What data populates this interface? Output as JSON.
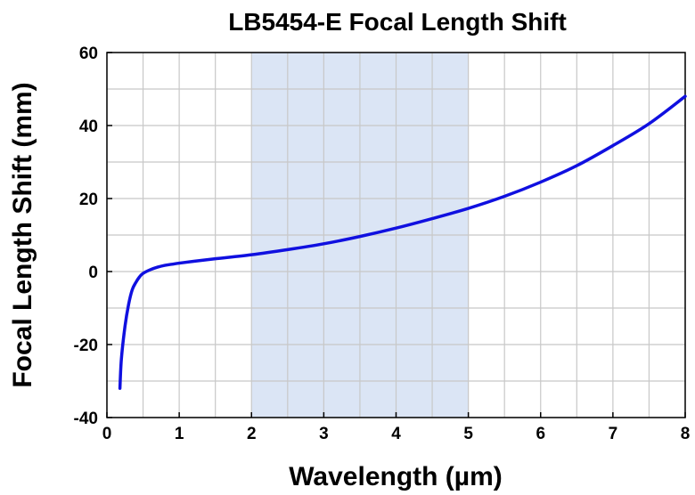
{
  "chart_data": {
    "type": "line",
    "title": "LB5454-E Focal Length Shift",
    "xlabel": "Wavelength (µm)",
    "ylabel": "Focal Length Shift (mm)",
    "xlim": [
      0,
      8
    ],
    "ylim": [
      -40,
      60
    ],
    "x_ticks": [
      0,
      1,
      2,
      3,
      4,
      5,
      6,
      7,
      8
    ],
    "y_ticks": [
      -40,
      -20,
      0,
      20,
      40,
      60
    ],
    "grid": true,
    "shaded_region": {
      "x_start": 2,
      "x_end": 5,
      "color": "#dbe5f5"
    },
    "series": [
      {
        "color": "#1010e0",
        "points": [
          [
            0.18,
            -32
          ],
          [
            0.2,
            -24
          ],
          [
            0.25,
            -15
          ],
          [
            0.3,
            -9
          ],
          [
            0.35,
            -5
          ],
          [
            0.4,
            -3
          ],
          [
            0.45,
            -1.5
          ],
          [
            0.5,
            -0.5
          ],
          [
            0.6,
            0.5
          ],
          [
            0.7,
            1.2
          ],
          [
            0.8,
            1.7
          ],
          [
            0.9,
            2.0
          ],
          [
            1.0,
            2.3
          ],
          [
            1.2,
            2.8
          ],
          [
            1.5,
            3.5
          ],
          [
            2.0,
            4.6
          ],
          [
            2.5,
            6.0
          ],
          [
            3.0,
            7.6
          ],
          [
            3.5,
            9.6
          ],
          [
            4.0,
            11.9
          ],
          [
            4.5,
            14.5
          ],
          [
            5.0,
            17.3
          ],
          [
            5.5,
            20.6
          ],
          [
            6.0,
            24.5
          ],
          [
            6.5,
            29.0
          ],
          [
            7.0,
            34.5
          ],
          [
            7.5,
            40.5
          ],
          [
            8.0,
            48.0
          ]
        ]
      }
    ]
  }
}
